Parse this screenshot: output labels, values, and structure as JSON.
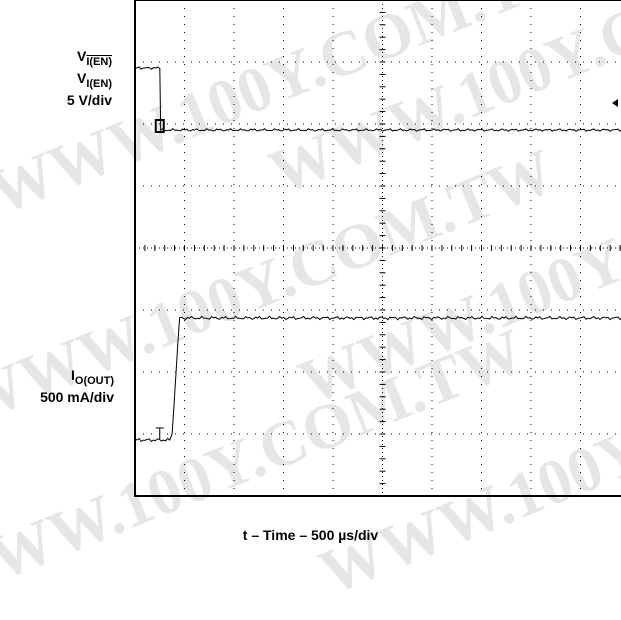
{
  "watermark": {
    "text": "WWW.100Y.COM.TW"
  },
  "chart_data": {
    "type": "line",
    "title": "",
    "xlabel": "t – Time – 500 µs/div",
    "x_unit": "µs",
    "grid": true,
    "grid_divisions": {
      "x": 10,
      "y": 8
    },
    "channels": [
      {
        "label_lines": [
          "V_I(EN-bar)",
          "V_I(EN)",
          "5 V/div"
        ],
        "ylabel_main": "V",
        "ylabel_sub_bar": "I(EN)",
        "ylabel_sub": "I(EN)",
        "scale": "5 V/div",
        "unit": "V",
        "x": [
          0,
          250,
          260,
          5000
        ],
        "values": [
          5,
          5,
          0,
          0
        ]
      },
      {
        "label_lines": [
          "I_O(OUT)",
          "500 mA/div"
        ],
        "ylabel_main": "I",
        "ylabel_sub": "O(OUT)",
        "scale": "500 mA/div",
        "unit": "mA",
        "x": [
          0,
          350,
          375,
          450,
          5000
        ],
        "values": [
          0,
          0,
          50,
          1000,
          1000
        ]
      }
    ]
  }
}
